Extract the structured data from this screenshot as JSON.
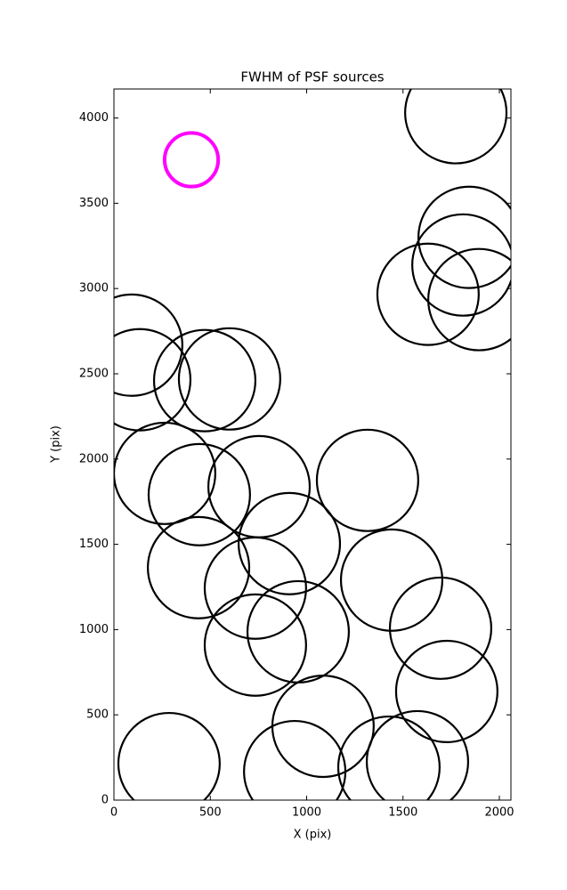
{
  "chart_data": {
    "type": "scatter",
    "title": "FWHM of PSF sources",
    "x_label": "X (pix)",
    "y_label": "Y (pix)",
    "xlim": [
      0,
      2060
    ],
    "ylim": [
      0,
      4170
    ],
    "xticks": [
      0,
      500,
      1000,
      1500,
      2000
    ],
    "yticks": [
      0,
      500,
      1000,
      1500,
      2000,
      2500,
      3000,
      3500,
      4000
    ],
    "series": [
      {
        "color": "#000000",
        "radius": 263,
        "x": [
          1774,
          1843,
          1811,
          1894,
          1630,
          92,
          134,
          471,
          600,
          263,
          443,
          753,
          1316,
          910,
          439,
          734,
          1441,
          956,
          1695,
          734,
          1727,
          1085,
          286,
          938,
          1427,
          1575
        ],
        "values": [
          4031,
          3300,
          3138,
          2935,
          2966,
          2668,
          2465,
          2460,
          2470,
          1916,
          1791,
          1838,
          1875,
          1504,
          1363,
          1243,
          1290,
          987,
          1008,
          909,
          637,
          433,
          214,
          167,
          193,
          225
        ]
      },
      {
        "color": "#ff00ff",
        "radius": 139,
        "x": [
          402
        ],
        "values": [
          3755
        ]
      }
    ]
  }
}
